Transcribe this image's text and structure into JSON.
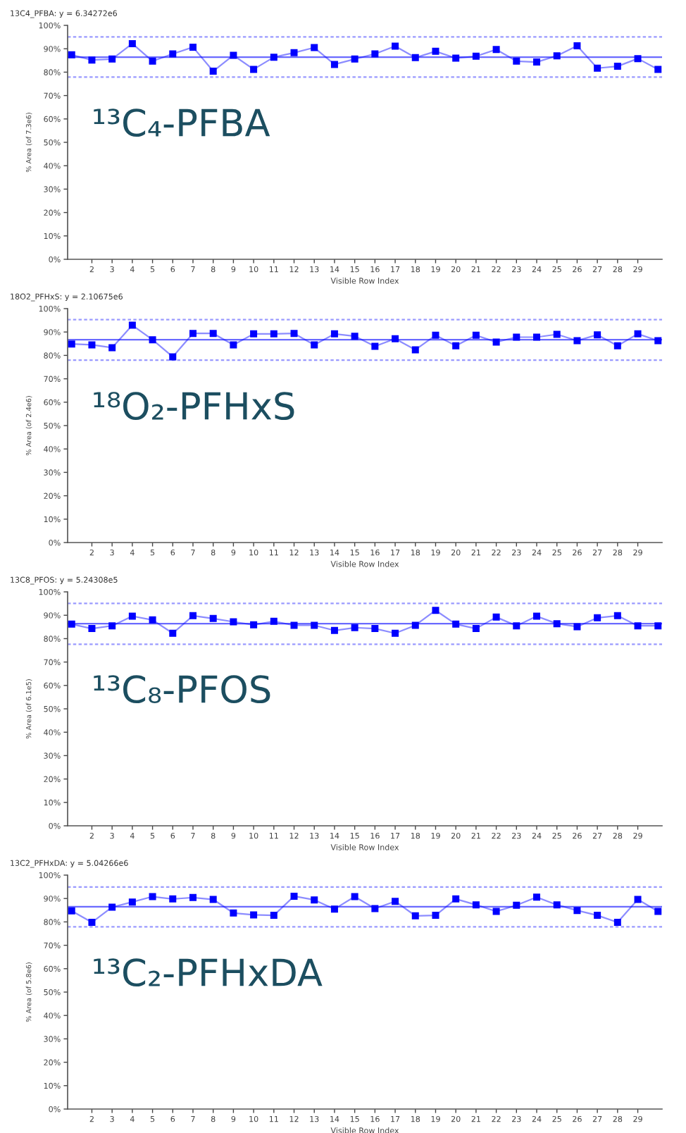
{
  "chart_data": [
    {
      "type": "line",
      "title": "13C4_PFBA: y = 6.34272e6",
      "xlabel": "Visible Row Index",
      "ylabel": "% Area (of 7.3e6)",
      "annotations": [
        "¹³C₄-PFBA"
      ],
      "marker": "square",
      "x": [
        1,
        2,
        3,
        4,
        5,
        6,
        7,
        8,
        9,
        10,
        11,
        12,
        13,
        14,
        15,
        16,
        17,
        18,
        19,
        20,
        21,
        22,
        23,
        24,
        25,
        26,
        27,
        28,
        29,
        30
      ],
      "xlim": [
        0.8,
        30.2
      ],
      "xticks": [
        2,
        3,
        4,
        5,
        6,
        7,
        8,
        9,
        10,
        11,
        12,
        13,
        14,
        15,
        16,
        17,
        18,
        19,
        20,
        21,
        22,
        23,
        24,
        25,
        26,
        27,
        28,
        29
      ],
      "ylim": [
        0,
        100
      ],
      "yticks": [
        {
          "value": 0,
          "label": "0%"
        },
        {
          "value": 10,
          "label": "10%"
        },
        {
          "value": 20,
          "label": "20%"
        },
        {
          "value": 30,
          "label": "30%"
        },
        {
          "value": 40,
          "label": "40%"
        },
        {
          "value": 50,
          "label": "50%"
        },
        {
          "value": 60,
          "label": "60%"
        },
        {
          "value": 70,
          "label": "70%"
        },
        {
          "value": 80,
          "label": "80%"
        },
        {
          "value": 90,
          "label": "90%"
        },
        {
          "value": 100,
          "label": "100%"
        }
      ],
      "series": [
        {
          "color": "#0000ff",
          "values": [
            87.4,
            85.2,
            85.6,
            92.2,
            84.7,
            87.8,
            90.7,
            80.4,
            87.2,
            81.2,
            86.4,
            88.3,
            90.5,
            83.3,
            85.6,
            87.8,
            91.1,
            86.2,
            88.9,
            86.0,
            86.8,
            89.7,
            84.7,
            84.3,
            87.0,
            91.3,
            81.7,
            82.5,
            85.8,
            81.2
          ]
        }
      ],
      "ref_lines": [
        {
          "axis": "y",
          "value": 86.4,
          "color": "#6a6aff",
          "line_style": "solid"
        },
        {
          "axis": "y",
          "value": 95.1,
          "color": "#9a9aff",
          "line_style": "dashed"
        },
        {
          "axis": "y",
          "value": 77.9,
          "color": "#9a9aff",
          "line_style": "dashed"
        }
      ]
    },
    {
      "type": "line",
      "title": "18O2_PFHxS: y = 2.10675e6",
      "xlabel": "Visible Row Index",
      "ylabel": "% Area (of 2.4e6)",
      "annotations": [
        "¹⁸O₂-PFHxS"
      ],
      "marker": "square",
      "x": [
        1,
        2,
        3,
        4,
        5,
        6,
        7,
        8,
        9,
        10,
        11,
        12,
        13,
        14,
        15,
        16,
        17,
        18,
        19,
        20,
        21,
        22,
        23,
        24,
        25,
        26,
        27,
        28,
        29,
        30
      ],
      "xlim": [
        0.8,
        30.2
      ],
      "xticks": [
        2,
        3,
        4,
        5,
        6,
        7,
        8,
        9,
        10,
        11,
        12,
        13,
        14,
        15,
        16,
        17,
        18,
        19,
        20,
        21,
        22,
        23,
        24,
        25,
        26,
        27,
        28,
        29
      ],
      "ylim": [
        0,
        100
      ],
      "yticks": [
        {
          "value": 0,
          "label": "0%"
        },
        {
          "value": 10,
          "label": "10%"
        },
        {
          "value": 20,
          "label": "20%"
        },
        {
          "value": 30,
          "label": "30%"
        },
        {
          "value": 40,
          "label": "40%"
        },
        {
          "value": 50,
          "label": "50%"
        },
        {
          "value": 60,
          "label": "60%"
        },
        {
          "value": 70,
          "label": "70%"
        },
        {
          "value": 80,
          "label": "80%"
        },
        {
          "value": 90,
          "label": "90%"
        },
        {
          "value": 100,
          "label": "100%"
        }
      ],
      "series": [
        {
          "color": "#0000ff",
          "values": [
            84.9,
            84.5,
            83.3,
            92.9,
            86.7,
            79.4,
            89.4,
            89.4,
            84.5,
            89.2,
            89.2,
            89.4,
            84.5,
            89.2,
            88.2,
            83.9,
            87.1,
            82.4,
            88.6,
            84.1,
            88.6,
            85.7,
            87.8,
            87.8,
            89.0,
            86.3,
            88.8,
            84.1,
            89.2,
            86.3
          ]
        }
      ],
      "ref_lines": [
        {
          "axis": "y",
          "value": 86.7,
          "color": "#6a6aff",
          "line_style": "solid"
        },
        {
          "axis": "y",
          "value": 95.3,
          "color": "#9a9aff",
          "line_style": "dashed"
        },
        {
          "axis": "y",
          "value": 78.0,
          "color": "#9a9aff",
          "line_style": "dashed"
        }
      ]
    },
    {
      "type": "line",
      "title": "13C8_PFOS: y = 5.24308e5",
      "xlabel": "Visible Row Index",
      "ylabel": "% Area (of 6.1e5)",
      "annotations": [
        "¹³C₈-PFOS"
      ],
      "marker": "square",
      "x": [
        1,
        2,
        3,
        4,
        5,
        6,
        7,
        8,
        9,
        10,
        11,
        12,
        13,
        14,
        15,
        16,
        17,
        18,
        19,
        20,
        21,
        22,
        23,
        24,
        25,
        26,
        27,
        28,
        29,
        30
      ],
      "xlim": [
        0.8,
        30.2
      ],
      "xticks": [
        2,
        3,
        4,
        5,
        6,
        7,
        8,
        9,
        10,
        11,
        12,
        13,
        14,
        15,
        16,
        17,
        18,
        19,
        20,
        21,
        22,
        23,
        24,
        25,
        26,
        27,
        28,
        29
      ],
      "ylim": [
        0,
        100
      ],
      "yticks": [
        {
          "value": 0,
          "label": "0%"
        },
        {
          "value": 10,
          "label": "10%"
        },
        {
          "value": 20,
          "label": "20%"
        },
        {
          "value": 30,
          "label": "30%"
        },
        {
          "value": 40,
          "label": "40%"
        },
        {
          "value": 50,
          "label": "50%"
        },
        {
          "value": 60,
          "label": "60%"
        },
        {
          "value": 70,
          "label": "70%"
        },
        {
          "value": 80,
          "label": "80%"
        },
        {
          "value": 90,
          "label": "90%"
        },
        {
          "value": 100,
          "label": "100%"
        }
      ],
      "series": [
        {
          "color": "#0000ff",
          "values": [
            86.2,
            84.3,
            85.5,
            89.6,
            88.0,
            82.3,
            89.8,
            88.6,
            87.2,
            85.9,
            87.4,
            85.7,
            85.7,
            83.5,
            84.7,
            84.3,
            82.3,
            85.7,
            92.1,
            86.2,
            84.3,
            89.2,
            85.5,
            89.6,
            86.4,
            85.1,
            88.9,
            89.8,
            85.5,
            85.5
          ]
        }
      ],
      "ref_lines": [
        {
          "axis": "y",
          "value": 86.4,
          "color": "#6a6aff",
          "line_style": "solid"
        },
        {
          "axis": "y",
          "value": 95.1,
          "color": "#9a9aff",
          "line_style": "dashed"
        },
        {
          "axis": "y",
          "value": 77.6,
          "color": "#9a9aff",
          "line_style": "dashed"
        }
      ]
    },
    {
      "type": "line",
      "title": "13C2_PFHxDA: y = 5.04266e6",
      "xlabel": "Visible Row Index",
      "ylabel": "% Area (of 5.8e6)",
      "annotations": [
        "¹³C₂-PFHxDA"
      ],
      "marker": "square",
      "x": [
        1,
        2,
        3,
        4,
        5,
        6,
        7,
        8,
        9,
        10,
        11,
        12,
        13,
        14,
        15,
        16,
        17,
        18,
        19,
        20,
        21,
        22,
        23,
        24,
        25,
        26,
        27,
        28,
        29,
        30
      ],
      "xlim": [
        0.8,
        30.2
      ],
      "xticks": [
        2,
        3,
        4,
        5,
        6,
        7,
        8,
        9,
        10,
        11,
        12,
        13,
        14,
        15,
        16,
        17,
        18,
        19,
        20,
        21,
        22,
        23,
        24,
        25,
        26,
        27,
        28,
        29
      ],
      "ylim": [
        0,
        100
      ],
      "yticks": [
        {
          "value": 0,
          "label": "0%"
        },
        {
          "value": 10,
          "label": "10%"
        },
        {
          "value": 20,
          "label": "20%"
        },
        {
          "value": 30,
          "label": "30%"
        },
        {
          "value": 40,
          "label": "40%"
        },
        {
          "value": 50,
          "label": "50%"
        },
        {
          "value": 60,
          "label": "60%"
        },
        {
          "value": 70,
          "label": "70%"
        },
        {
          "value": 80,
          "label": "80%"
        },
        {
          "value": 90,
          "label": "90%"
        },
        {
          "value": 100,
          "label": "100%"
        }
      ],
      "series": [
        {
          "color": "#0000ff",
          "values": [
            84.7,
            79.8,
            86.3,
            88.5,
            90.8,
            89.8,
            90.4,
            89.6,
            83.8,
            83.0,
            82.8,
            91.0,
            89.4,
            85.5,
            90.8,
            85.7,
            88.8,
            82.6,
            82.8,
            89.8,
            87.3,
            84.5,
            87.1,
            90.6,
            87.3,
            84.9,
            82.8,
            79.8,
            89.6,
            84.5
          ]
        }
      ],
      "ref_lines": [
        {
          "axis": "y",
          "value": 86.5,
          "color": "#6a6aff",
          "line_style": "solid"
        },
        {
          "axis": "y",
          "value": 94.9,
          "color": "#9a9aff",
          "line_style": "dashed"
        },
        {
          "axis": "y",
          "value": 77.9,
          "color": "#9a9aff",
          "line_style": "dashed"
        }
      ]
    }
  ]
}
